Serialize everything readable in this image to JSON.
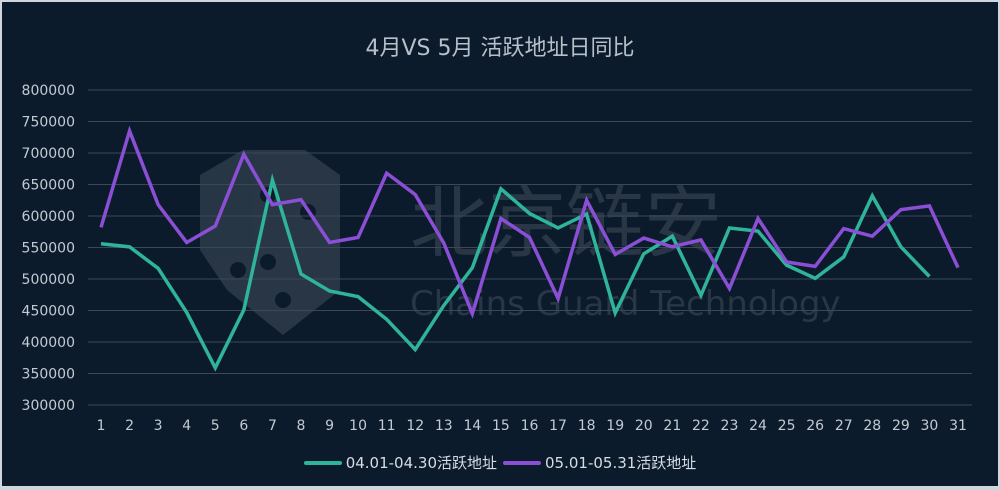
{
  "chart_data": {
    "type": "line",
    "title": "4月VS 5月 活跃地址日同比",
    "xlabel": "",
    "ylabel": "",
    "ylim": [
      300000,
      800000
    ],
    "y_ticks": [
      800000,
      750000,
      700000,
      650000,
      600000,
      550000,
      500000,
      450000,
      400000,
      350000,
      300000
    ],
    "grid": true,
    "legend_position": "bottom",
    "x": [
      1,
      2,
      3,
      4,
      5,
      6,
      7,
      8,
      9,
      10,
      11,
      12,
      13,
      14,
      15,
      16,
      17,
      18,
      19,
      20,
      21,
      22,
      23,
      24,
      25,
      26,
      27,
      28,
      29,
      30,
      31
    ],
    "series": [
      {
        "name": "04.01-04.30活跃地址",
        "color": "#2fb49a",
        "values": [
          556000,
          551000,
          517000,
          447000,
          359000,
          451000,
          657000,
          508000,
          481000,
          472000,
          436000,
          388000,
          458000,
          518000,
          643000,
          604000,
          581000,
          603000,
          446000,
          540000,
          568000,
          474000,
          581000,
          576000,
          522000,
          501000,
          535000,
          632000,
          551000,
          504000
        ]
      },
      {
        "name": "05.01-05.31活跃地址",
        "color": "#8b4fd6",
        "values": [
          582000,
          735000,
          618000,
          558000,
          584000,
          698000,
          618000,
          626000,
          558000,
          566000,
          668000,
          634000,
          557000,
          445000,
          596000,
          566000,
          469000,
          625000,
          539000,
          565000,
          551000,
          562000,
          485000,
          596000,
          527000,
          520000,
          580000,
          568000,
          610000,
          616000,
          518000
        ]
      }
    ]
  },
  "watermark": {
    "cn": "北京链安",
    "en": "Chains Guard Technology"
  }
}
